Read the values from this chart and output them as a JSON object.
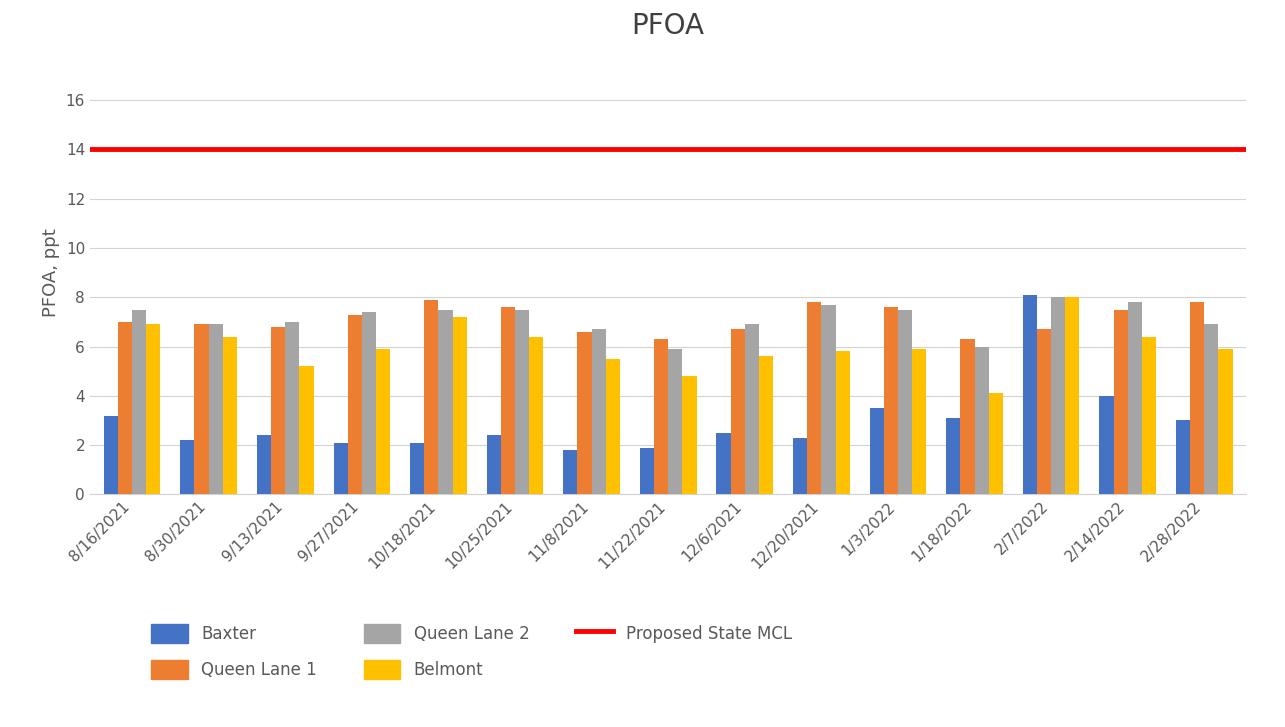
{
  "title": "PFOA",
  "ylabel": "PFOA, ppt",
  "mcl_value": 14,
  "dates": [
    "8/16/2021",
    "8/30/2021",
    "9/13/2021",
    "9/27/2021",
    "10/18/2021",
    "10/25/2021",
    "11/8/2021",
    "11/22/2021",
    "12/6/2021",
    "12/20/2021",
    "1/3/2022",
    "1/18/2022",
    "2/7/2022",
    "2/14/2022",
    "2/28/2022"
  ],
  "baxter": [
    3.2,
    2.2,
    2.4,
    2.1,
    2.1,
    2.4,
    1.8,
    1.9,
    2.5,
    2.3,
    3.5,
    3.1,
    8.1,
    4.0,
    3.0
  ],
  "queen_lane1": [
    7.0,
    6.9,
    6.8,
    7.3,
    7.9,
    7.6,
    6.6,
    6.3,
    6.7,
    7.8,
    7.6,
    6.3,
    6.7,
    7.5,
    7.8
  ],
  "queen_lane2": [
    7.5,
    6.9,
    7.0,
    7.4,
    7.5,
    7.5,
    6.7,
    5.9,
    6.9,
    7.7,
    7.5,
    6.0,
    8.0,
    7.8,
    6.9
  ],
  "belmont": [
    6.9,
    6.4,
    5.2,
    5.9,
    7.2,
    6.4,
    5.5,
    4.8,
    5.6,
    5.8,
    5.9,
    4.1,
    8.0,
    6.4,
    5.9
  ],
  "colors": {
    "baxter": "#4472C4",
    "queen_lane1": "#ED7D31",
    "queen_lane2": "#A5A5A5",
    "belmont": "#FFC000",
    "mcl": "#FF0000"
  },
  "ylim": [
    0,
    18
  ],
  "yticks": [
    0,
    2,
    4,
    6,
    8,
    10,
    12,
    14,
    16
  ],
  "title_fontsize": 20,
  "label_fontsize": 13,
  "tick_fontsize": 11,
  "legend_fontsize": 12,
  "bar_width": 0.185,
  "background_color": "#FFFFFF",
  "text_color": "#595959"
}
